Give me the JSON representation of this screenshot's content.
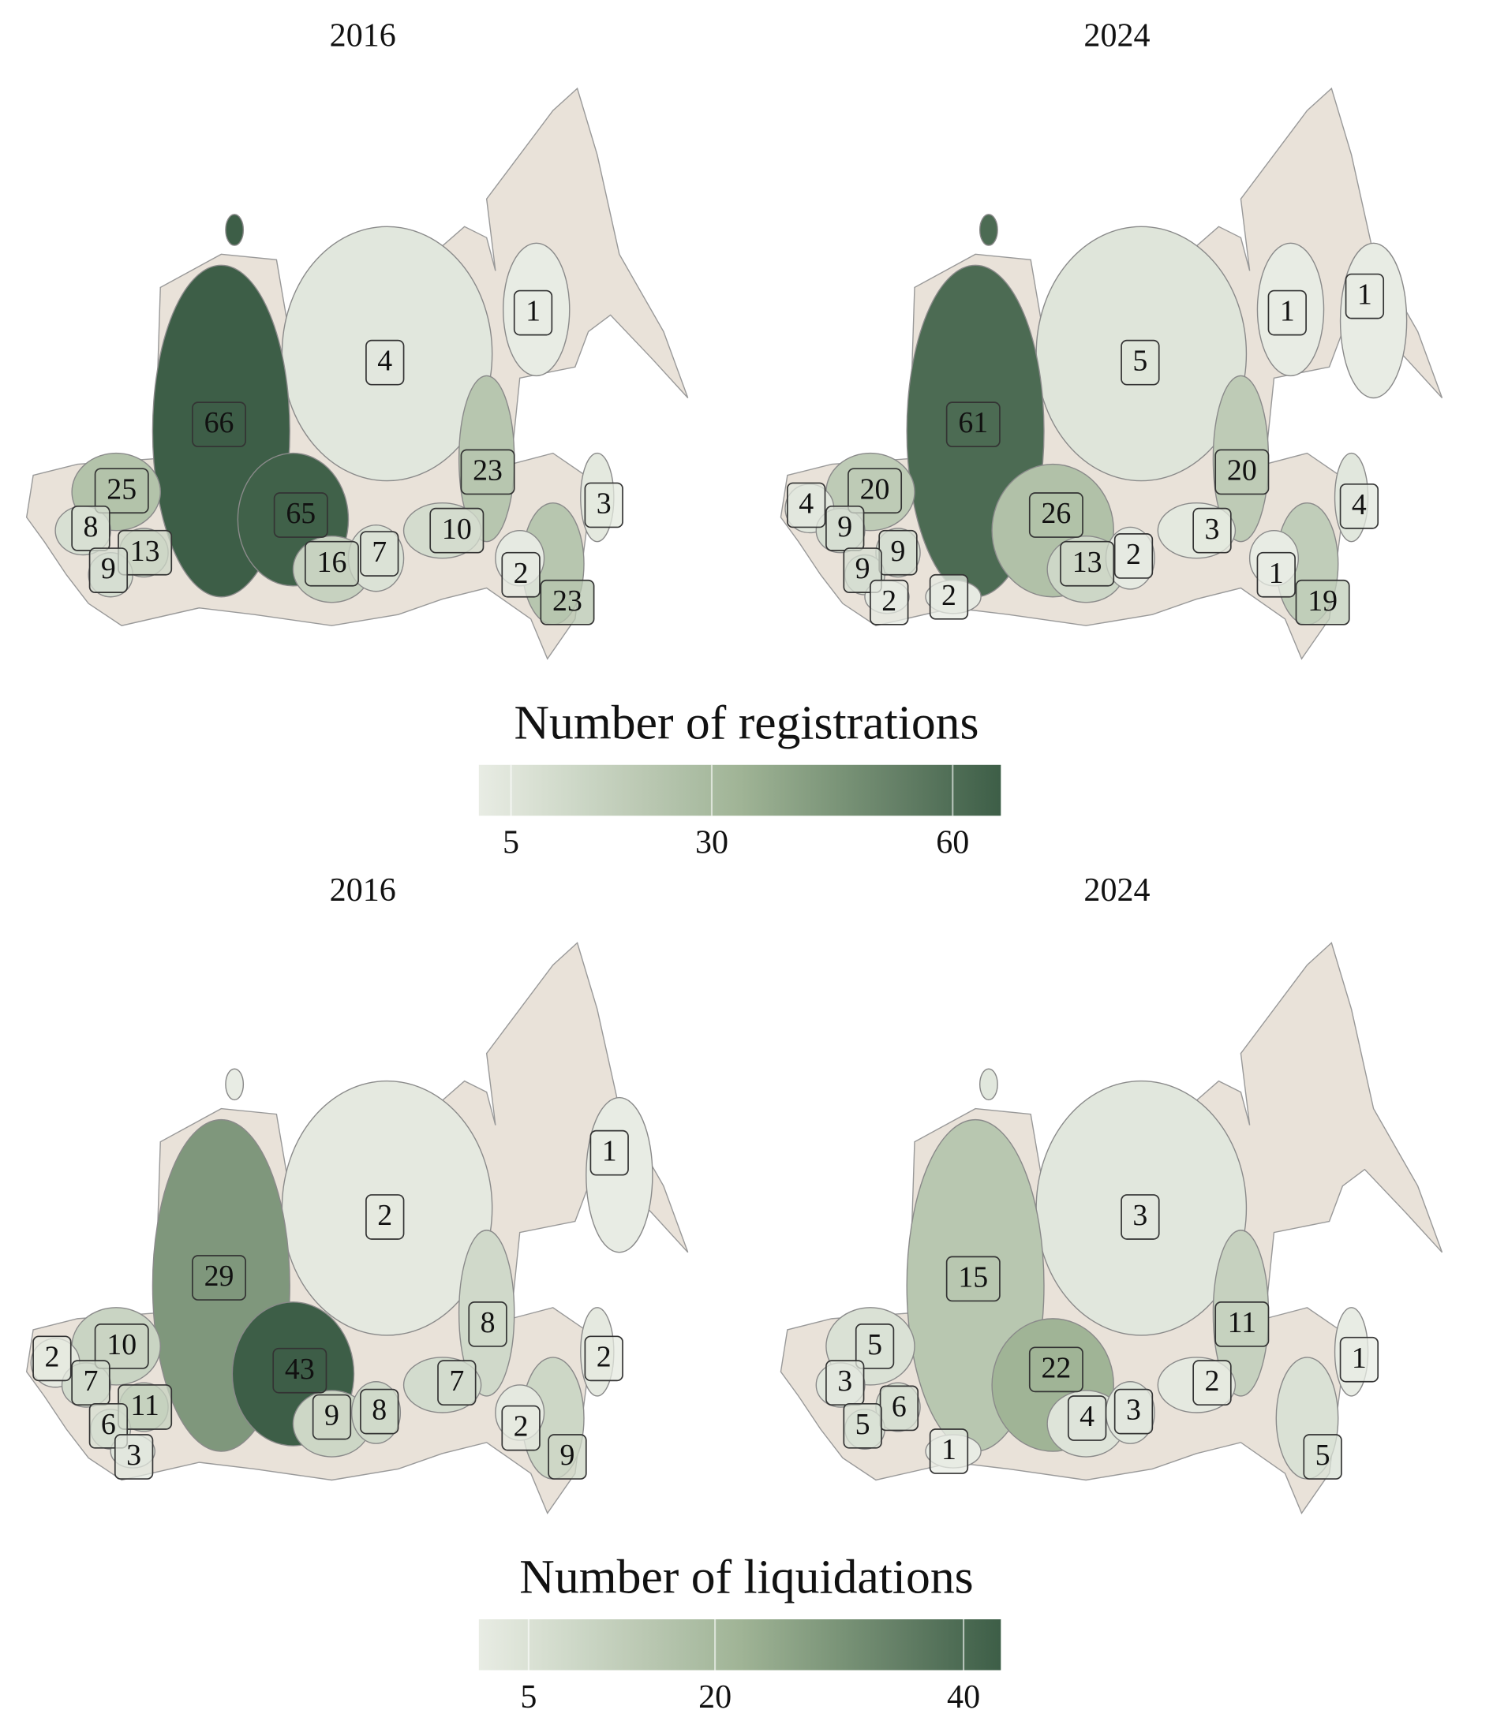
{
  "figures": [
    {
      "colorbar": {
        "title": "Number of registrations",
        "range": [
          1,
          66
        ],
        "ticks": [
          5,
          30,
          60
        ]
      },
      "panels": [
        {
          "title": "2016",
          "values": [
            66,
            4,
            1,
            25,
            23,
            3,
            65,
            8,
            13,
            10,
            7,
            16,
            9,
            2,
            23
          ]
        },
        {
          "title": "2024",
          "values": [
            61,
            5,
            1,
            1,
            20,
            20,
            4,
            26,
            4,
            9,
            9,
            3,
            13,
            2,
            9,
            1,
            2,
            2,
            19
          ]
        }
      ]
    },
    {
      "colorbar": {
        "title": "Number of liquidations",
        "range": [
          1,
          43
        ],
        "ticks": [
          5,
          20,
          40
        ]
      },
      "panels": [
        {
          "title": "2016",
          "values": [
            1,
            2,
            29,
            8,
            10,
            2,
            2,
            43,
            7,
            7,
            11,
            9,
            8,
            6,
            2,
            3,
            9
          ]
        },
        {
          "title": "2024",
          "values": [
            3,
            15,
            11,
            5,
            1,
            22,
            3,
            2,
            6,
            4,
            3,
            5,
            1,
            5
          ]
        }
      ]
    }
  ]
}
